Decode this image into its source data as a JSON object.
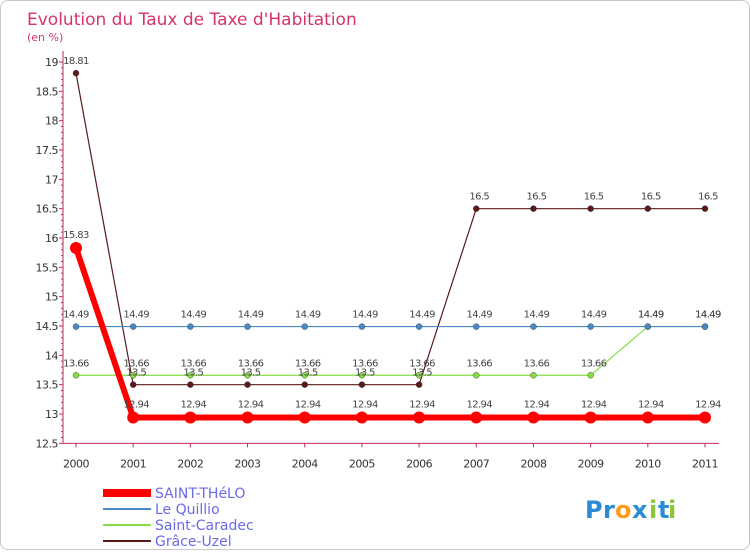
{
  "chart_data": {
    "type": "line",
    "title": "Evolution du Taux de Taxe d'Habitation",
    "subtitle": "(en %)",
    "x": [
      "2000",
      "2001",
      "2002",
      "2003",
      "2004",
      "2005",
      "2006",
      "2007",
      "2008",
      "2009",
      "2010",
      "2011"
    ],
    "ylim": [
      12.5,
      19
    ],
    "yticks": [
      12.5,
      13,
      13.5,
      14,
      14.5,
      15,
      15.5,
      16,
      16.5,
      17,
      17.5,
      18,
      18.5,
      19
    ],
    "ytick_labels": [
      "12.5",
      "13",
      "13.5",
      "14",
      "14.5",
      "15",
      "15.5",
      "16",
      "16.5",
      "17",
      "17.5",
      "18",
      "18.5",
      "19"
    ],
    "grid": false,
    "legend_position": "bottom-left",
    "series": [
      {
        "name": "SAINT-THéLO",
        "color": "#ff0000",
        "values": [
          15.83,
          12.94,
          12.94,
          12.94,
          12.94,
          12.94,
          12.94,
          12.94,
          12.94,
          12.94,
          12.94,
          12.94
        ],
        "labels": [
          "15.83",
          "12.94",
          "12.94",
          "12.94",
          "12.94",
          "12.94",
          "12.94",
          "12.94",
          "12.94",
          "12.94",
          "12.94",
          "12.94"
        ]
      },
      {
        "name": "Le Quillio",
        "color": "#4a88c8",
        "values": [
          14.49,
          14.49,
          14.49,
          14.49,
          14.49,
          14.49,
          14.49,
          14.49,
          14.49,
          14.49,
          14.49,
          14.49
        ],
        "labels": [
          "14.49",
          "14.49",
          "14.49",
          "14.49",
          "14.49",
          "14.49",
          "14.49",
          "14.49",
          "14.49",
          "14.49",
          "14.49",
          "14.49"
        ]
      },
      {
        "name": "Saint-Caradec",
        "color": "#88dd44",
        "values": [
          13.66,
          13.66,
          13.66,
          13.66,
          13.66,
          13.66,
          13.66,
          13.66,
          13.66,
          13.66,
          14.49,
          14.49
        ],
        "labels": [
          "13.66",
          "13.66",
          "13.66",
          "13.66",
          "13.66",
          "13.66",
          "13.66",
          "13.66",
          "13.66",
          "13.66",
          "14.49",
          "14.49"
        ]
      },
      {
        "name": "Grâce-Uzel",
        "color": "#5a1a1a",
        "values": [
          18.81,
          13.5,
          13.5,
          13.5,
          13.5,
          13.5,
          13.5,
          16.5,
          16.5,
          16.5,
          16.5,
          16.5
        ],
        "labels": [
          "18.81",
          "13.5",
          "13.5",
          "13.5",
          "13.5",
          "13.5",
          "13.5",
          "16.5",
          "16.5",
          "16.5",
          "16.5",
          "16.5"
        ]
      }
    ]
  },
  "brand": {
    "letters": [
      "P",
      "r",
      "o",
      "x",
      "i",
      "t",
      "i"
    ],
    "colors": [
      "#2a8ad6",
      "#2a8ad6",
      "#ff9a22",
      "#2a8ad6",
      "#8ac63a",
      "#2a8ad6",
      "#8ac63a"
    ]
  }
}
